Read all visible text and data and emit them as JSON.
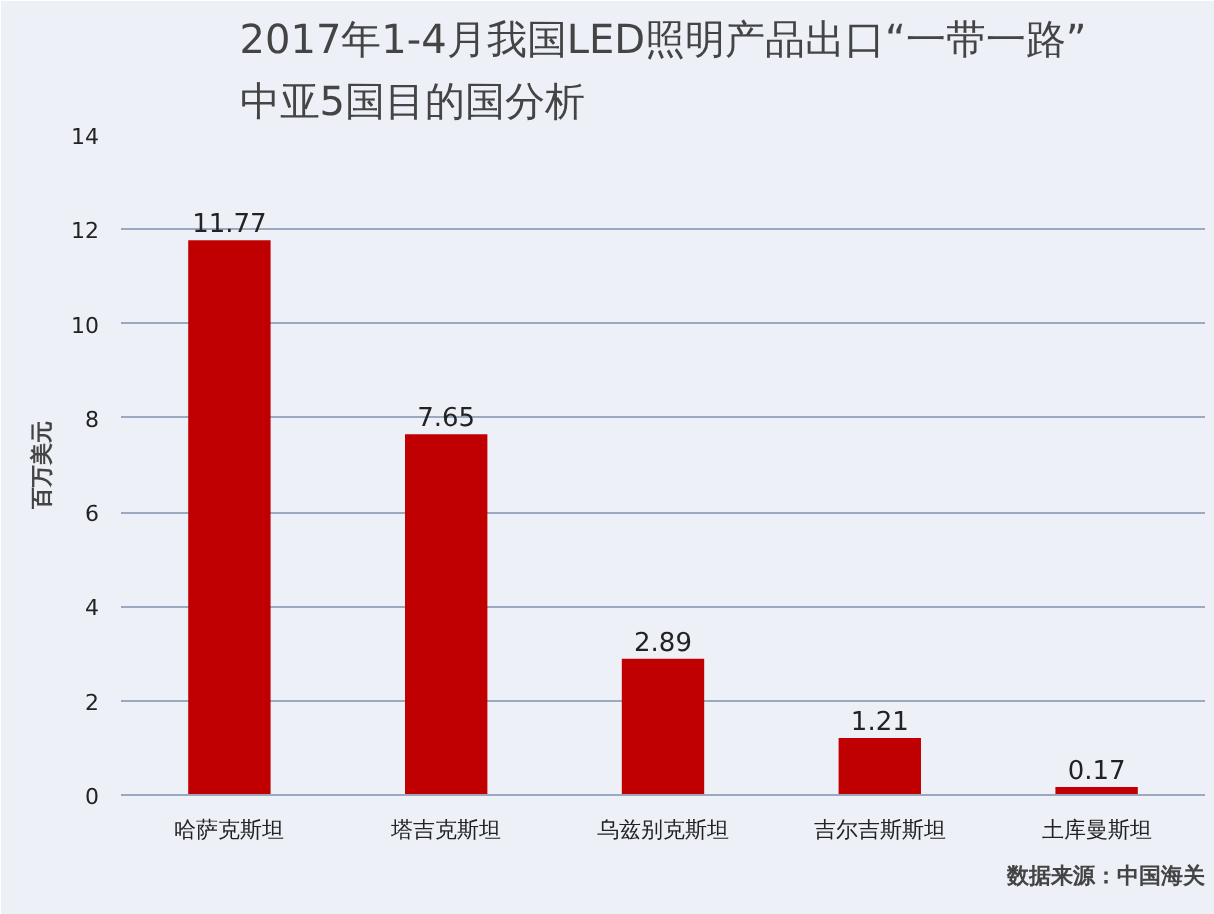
{
  "chart_data": {
    "type": "bar",
    "title": "2017年1-4月我国LED照明产品出口“一带一路”\n中亚5国目的国分析",
    "ylabel": "百万美元",
    "categories": [
      "哈萨克斯坦",
      "塔吉克斯坦",
      "乌兹别克斯坦",
      "吉尔吉斯斯坦",
      "土库曼斯坦"
    ],
    "values": [
      11.77,
      7.65,
      2.89,
      1.21,
      0.17
    ],
    "color": "#c00000",
    "ylim": [
      0,
      14
    ],
    "yticks": [
      0,
      2,
      4,
      6,
      8,
      10,
      12,
      14
    ],
    "grid": "y",
    "data_labels": true,
    "annotations": [
      "数据来源：中国海关"
    ]
  }
}
